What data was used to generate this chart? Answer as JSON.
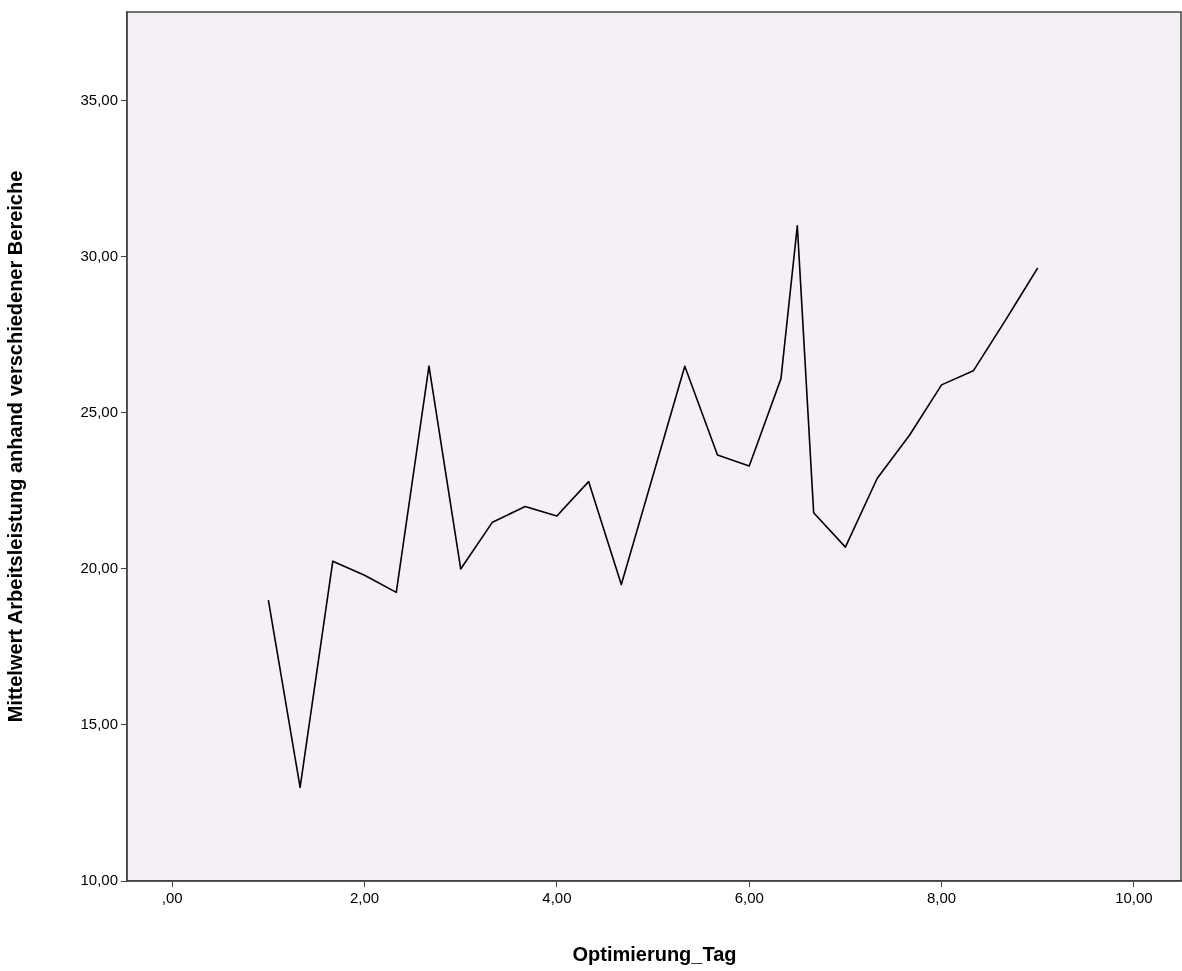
{
  "chart_data": {
    "type": "line",
    "xlabel": "Optimierung_Tag",
    "ylabel": "Mittelwert Arbeitsleistung anhand verschiedener Bereiche",
    "x": [
      1,
      1.33,
      1.67,
      2,
      2.33,
      2.67,
      3,
      3.33,
      3.67,
      4,
      4.33,
      4.67,
      5.33,
      5.67,
      6,
      6.33,
      6.5,
      6.67,
      7,
      7.33,
      7.67,
      8,
      8.33,
      8.67,
      9
    ],
    "series": [
      {
        "color": "#000000",
        "values": [
          19.0,
          13.0,
          20.25,
          19.8,
          19.25,
          26.5,
          20.0,
          21.5,
          22.0,
          21.7,
          22.8,
          19.5,
          26.5,
          23.65,
          23.3,
          26.1,
          31.0,
          21.8,
          20.7,
          22.9,
          24.3,
          25.9,
          26.35,
          28.0,
          29.65
        ]
      }
    ],
    "xlim": [
      -0.47,
      10.5
    ],
    "ylim": [
      10,
      37.85
    ],
    "xticks": [
      {
        "value": 0,
        "label": ",00"
      },
      {
        "value": 2,
        "label": "2,00"
      },
      {
        "value": 4,
        "label": "4,00"
      },
      {
        "value": 6,
        "label": "6,00"
      },
      {
        "value": 8,
        "label": "8,00"
      },
      {
        "value": 10,
        "label": "10,00"
      }
    ],
    "yticks": [
      {
        "value": 10,
        "label": "10,00"
      },
      {
        "value": 15,
        "label": "15,00"
      },
      {
        "value": 20,
        "label": "20,00"
      },
      {
        "value": 25,
        "label": "25,00"
      },
      {
        "value": 30,
        "label": "30,00"
      },
      {
        "value": 35,
        "label": "35,00"
      }
    ],
    "grid": false,
    "legend": false,
    "marker": "none",
    "line_style": "solid"
  }
}
